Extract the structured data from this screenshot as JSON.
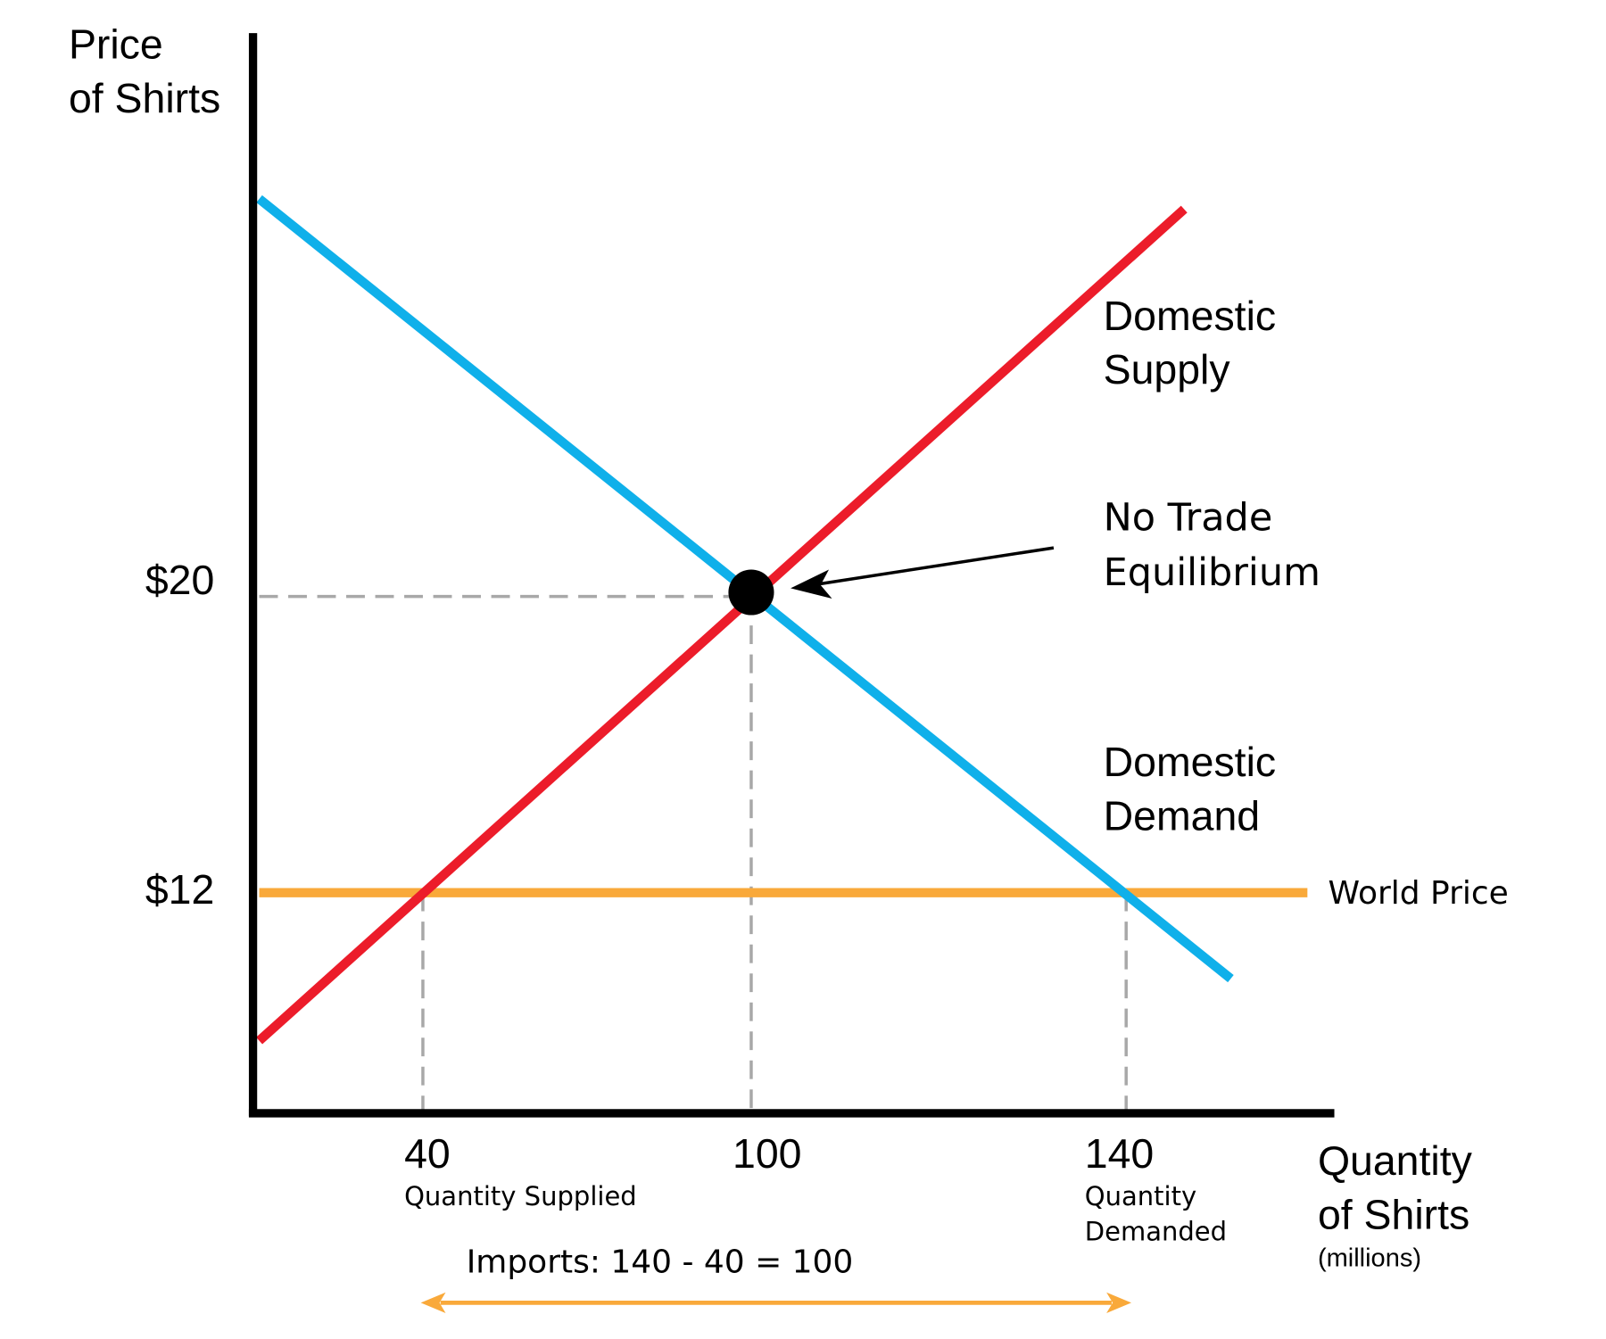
{
  "y_axis": {
    "title": [
      "Price",
      "of Shirts"
    ],
    "ticks": [
      "$20",
      "$12"
    ]
  },
  "x_axis": {
    "title": [
      "Quantity",
      "of Shirts"
    ],
    "unit": "(millions)",
    "ticks": [
      {
        "label": "40",
        "note": [
          "Quantity Supplied"
        ]
      },
      {
        "label": "100"
      },
      {
        "label": "140",
        "note": [
          "Quantity",
          "Demanded"
        ]
      }
    ]
  },
  "curves": {
    "supply": [
      "Domestic",
      "Supply"
    ],
    "equilibrium": [
      "No Trade",
      "Equilibrium"
    ],
    "demand": [
      "Domestic",
      "Demand"
    ],
    "world_price": "World Price"
  },
  "imports": "Imports: 140 - 40 = 100"
}
